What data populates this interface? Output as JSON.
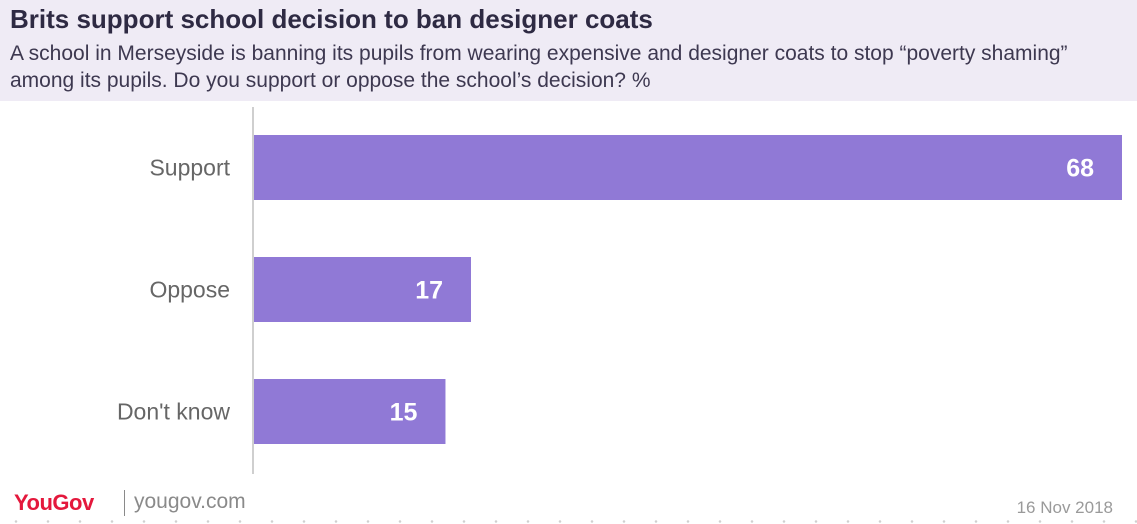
{
  "header": {
    "title": "Brits support school decision to ban designer coats",
    "subtitle": "A school in Merseyside is banning its pupils from wearing expensive and designer coats to stop “poverty shaming” among its pupils. Do you support or oppose the school’s decision? %"
  },
  "chart_data": {
    "type": "bar",
    "orientation": "horizontal",
    "categories": [
      "Support",
      "Oppose",
      "Don't know"
    ],
    "values": [
      68,
      17,
      15
    ],
    "data_labels": [
      "68",
      "17",
      "15"
    ],
    "xlim": [
      0,
      68
    ],
    "grid": false,
    "bar_color": "#9079d6"
  },
  "footer": {
    "brand": "YouGov",
    "site": "yougov.com",
    "date": "16 Nov 2018"
  },
  "colors": {
    "header_bg": "#efebf5",
    "bar": "#9079d6",
    "brand_red": "#e4183c"
  }
}
